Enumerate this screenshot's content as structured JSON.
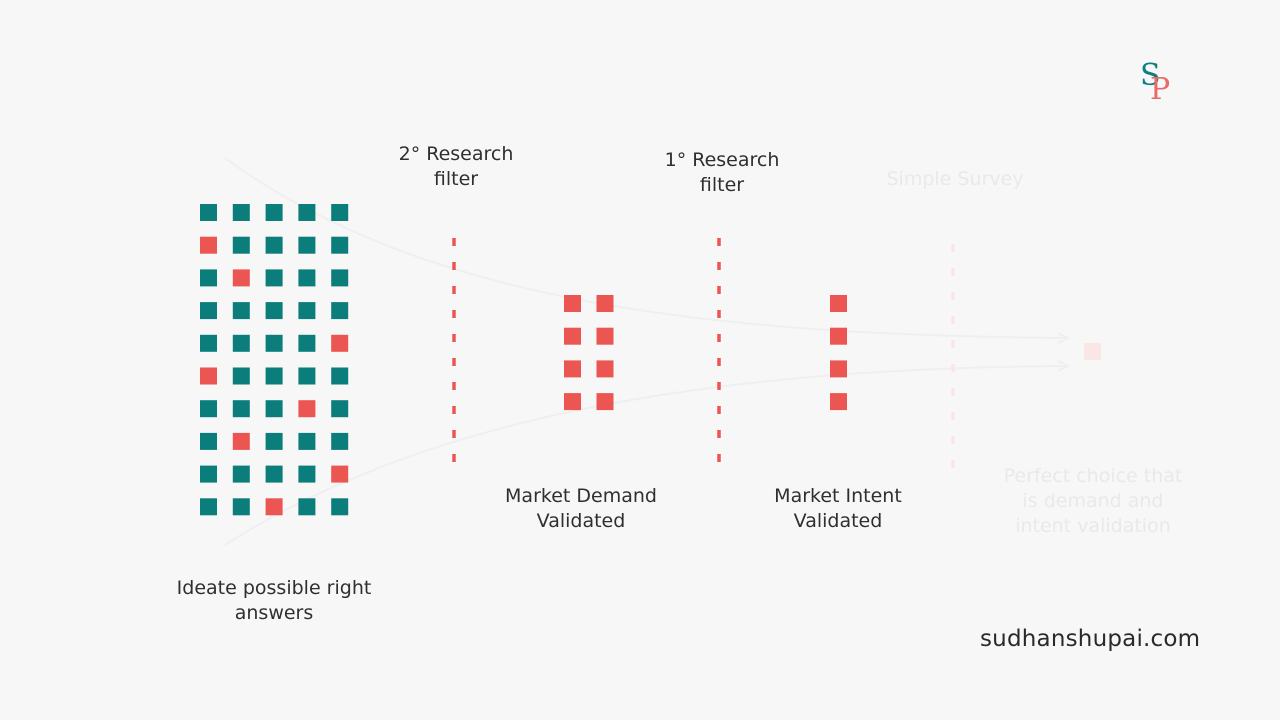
{
  "colors": {
    "teal": "#0b7d7b",
    "red": "#ec5652",
    "faded_red": "#fbe6e6",
    "faded_text": "#e9e9e9",
    "curve": "#efefef"
  },
  "logo": {
    "letter_1": "S",
    "letter_2": "P"
  },
  "domain": "sudhanshupai.com",
  "stages": {
    "ideate": {
      "label_line1": "Ideate possible right",
      "label_line2": "answers"
    },
    "secondary_filter": {
      "label_line1": "2° Research",
      "label_line2": "filter"
    },
    "demand": {
      "label_line1": "Market Demand",
      "label_line2": "Validated"
    },
    "primary_filter": {
      "label_line1": "1° Research",
      "label_line2": "filter"
    },
    "intent": {
      "label_line1": "Market Intent",
      "label_line2": "Validated"
    },
    "survey": {
      "label": "Simple Survey"
    },
    "perfect": {
      "label_line1": "Perfect choice that",
      "label_line2": "is demand and",
      "label_line3": "intent validation"
    }
  },
  "grid_pattern": [
    "TTTTT",
    "RTTTT",
    "TRTTT",
    "TTTTT",
    "TTTTR",
    "RTTTT",
    "TTTRT",
    "TRTTT",
    "TTTTR",
    "TTRTT"
  ],
  "demand_count": 8,
  "intent_count": 4,
  "perfect_count": 1
}
